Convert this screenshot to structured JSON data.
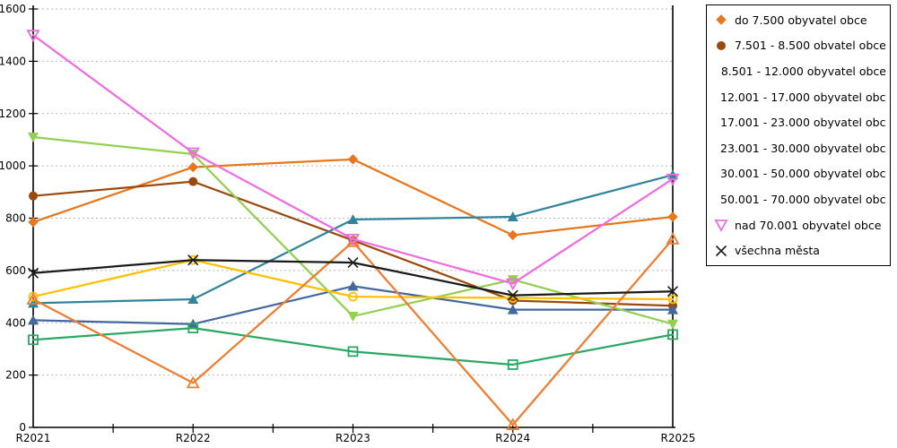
{
  "chart_data": {
    "type": "line",
    "title": "",
    "xlabel": "",
    "ylabel": "",
    "categories": [
      "R2021",
      "R2022",
      "R2023",
      "R2024",
      "R2025"
    ],
    "ylim": [
      0,
      1600
    ],
    "ystep": 200,
    "yticks": [
      0,
      200,
      400,
      600,
      800,
      1000,
      1200,
      1400,
      1600
    ],
    "grid": "horizontal-dashed",
    "legend_position": "right",
    "series": [
      {
        "name": "do 7.500 obyvatel obce",
        "color": "#E8761D",
        "marker": "diamond",
        "values": [
          785,
          995,
          1025,
          735,
          805
        ]
      },
      {
        "name": "7.501 - 8.500 obvatel obce",
        "color": "#9A4A0E",
        "marker": "circle",
        "values": [
          885,
          940,
          715,
          485,
          465
        ]
      },
      {
        "name": "8.501 - 12.000 obyvatel obce",
        "color": "#31849B",
        "marker": "triangle-up",
        "values": [
          475,
          490,
          795,
          805,
          965
        ]
      },
      {
        "name": "12.001 - 17.000 obyvatel obc...",
        "color": "#44689D",
        "marker": "triangle-up",
        "values": [
          410,
          395,
          540,
          450,
          450
        ]
      },
      {
        "name": "17.001 - 23.000 obyvatel obc...",
        "color": "#92D050",
        "marker": "triangle-down",
        "values": [
          1110,
          1045,
          425,
          565,
          395
        ]
      },
      {
        "name": "23.001 - 30.000 obyvatel obc...",
        "color": "#2BA864",
        "marker": "square-open",
        "values": [
          335,
          380,
          290,
          240,
          355
        ]
      },
      {
        "name": "30.001 - 50.000 obyvatel obc...",
        "color": "#FFC000",
        "marker": "circle-open",
        "values": [
          500,
          640,
          500,
          495,
          490
        ]
      },
      {
        "name": "50.001 - 70.000 obyvatel obc...",
        "color": "#ED7D31",
        "marker": "triangle-up-open",
        "values": [
          490,
          170,
          710,
          10,
          720
        ]
      },
      {
        "name": "nad 70.001 obyvatel obce",
        "color": "#EE6CE0",
        "marker": "triangle-down-open",
        "values": [
          1500,
          1050,
          720,
          550,
          950
        ]
      },
      {
        "name": "všechna města",
        "color": "#1A1A1A",
        "marker": "x",
        "values": [
          590,
          640,
          630,
          505,
          520
        ]
      }
    ],
    "colors": {
      "grid": "#B8B8B8",
      "axis": "#000000",
      "legend_border": "#000000",
      "background": "#FFFFFF"
    }
  }
}
